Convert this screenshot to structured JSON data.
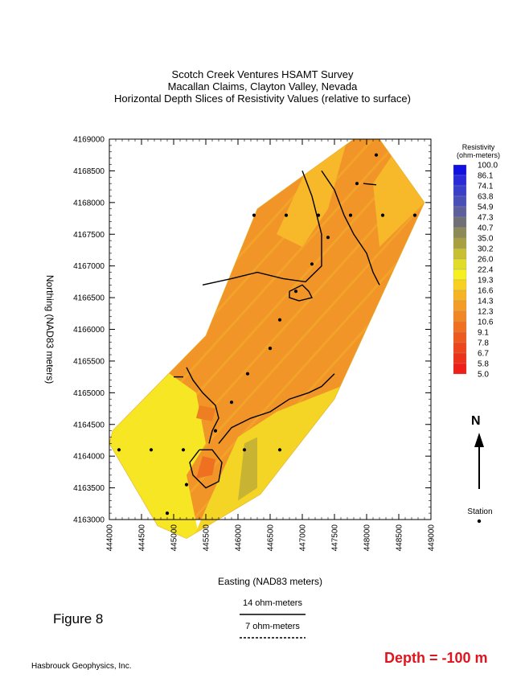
{
  "titles": {
    "line1": "Scotch Creek Ventures HSAMT Survey",
    "line2": "Macallan Claims, Clayton Valley, Nevada",
    "line3": "Horizontal Depth Slices of Resistivity Values (relative to surface)"
  },
  "colors": {
    "background": "#ffffff",
    "depth_text": "#e0141e",
    "contour_line": "#000000"
  },
  "chart_data": {
    "type": "heatmap",
    "xlabel": "Easting (NAD83 meters)",
    "ylabel": "Northing (NAD83 meters)",
    "xlim": [
      444000,
      449000
    ],
    "ylim": [
      4163000,
      4169000
    ],
    "x_ticks": [
      "444000",
      "444500",
      "445000",
      "445500",
      "446000",
      "446500",
      "447000",
      "447500",
      "448000",
      "448500",
      "449000"
    ],
    "y_ticks": [
      "4163000",
      "4163500",
      "4164000",
      "4164500",
      "4165000",
      "4165500",
      "4166000",
      "4166500",
      "4167000",
      "4167500",
      "4168000",
      "4168500",
      "4169000"
    ],
    "colorbar": {
      "title_line1": "Resistivity",
      "title_line2": "(ohm-meters)",
      "levels": [
        "100.0",
        "86.1",
        "74.1",
        "63.8",
        "54.9",
        "47.3",
        "40.7",
        "35.0",
        "30.2",
        "26.0",
        "22.4",
        "19.3",
        "16.6",
        "14.3",
        "12.3",
        "10.6",
        "9.1",
        "7.8",
        "6.7",
        "5.8",
        "5.0"
      ],
      "colors": [
        "#1010e0",
        "#2a2ad8",
        "#3a3ec8",
        "#4a4fb8",
        "#5c5f9c",
        "#707074",
        "#8c8a56",
        "#a8a040",
        "#c8c030",
        "#e0dc28",
        "#f6f020",
        "#f8d020",
        "#f6b424",
        "#f49c24",
        "#f28624",
        "#f07020",
        "#ee5a1e",
        "#ee461c",
        "#ee321a",
        "#ee1e18",
        "#ee1010"
      ]
    },
    "survey_boundary": [
      [
        444050,
        4164400
      ],
      [
        445500,
        4165900
      ],
      [
        446300,
        4167900
      ],
      [
        447800,
        4169000
      ],
      [
        448200,
        4169000
      ],
      [
        448900,
        4168000
      ],
      [
        447500,
        4164900
      ],
      [
        446350,
        4163400
      ],
      [
        445200,
        4162700
      ],
      [
        444750,
        4162900
      ],
      [
        444000,
        4164200
      ]
    ],
    "stations": [
      [
        444150,
        4164100
      ],
      [
        444650,
        4164100
      ],
      [
        445150,
        4164100
      ],
      [
        445200,
        4163550
      ],
      [
        444900,
        4163100
      ],
      [
        445650,
        4164400
      ],
      [
        445900,
        4164850
      ],
      [
        446100,
        4164100
      ],
      [
        446650,
        4164100
      ],
      [
        446150,
        4165300
      ],
      [
        446500,
        4165700
      ],
      [
        446650,
        4166150
      ],
      [
        446900,
        4166600
      ],
      [
        447150,
        4167030
      ],
      [
        447400,
        4167450
      ],
      [
        446250,
        4167800
      ],
      [
        446750,
        4167800
      ],
      [
        447250,
        4167800
      ],
      [
        447750,
        4167800
      ],
      [
        448250,
        4167800
      ],
      [
        448750,
        4167800
      ],
      [
        447850,
        4168300
      ],
      [
        448150,
        4168750
      ]
    ],
    "contours_14": [
      [
        [
          445450,
          4166700
        ],
        [
          445900,
          4166800
        ],
        [
          446300,
          4166900
        ],
        [
          446700,
          4166800
        ],
        [
          447050,
          4166750
        ],
        [
          447300,
          4167000
        ],
        [
          447300,
          4167500
        ],
        [
          447150,
          4168100
        ],
        [
          447000,
          4168500
        ]
      ],
      [
        [
          447300,
          4168500
        ],
        [
          447500,
          4168200
        ],
        [
          447650,
          4167800
        ],
        [
          447800,
          4167500
        ],
        [
          448000,
          4167200
        ],
        [
          448100,
          4166900
        ],
        [
          448200,
          4166700
        ]
      ],
      [
        [
          445200,
          4165400
        ],
        [
          445300,
          4165200
        ],
        [
          445450,
          4165000
        ],
        [
          445650,
          4164800
        ],
        [
          445700,
          4164600
        ],
        [
          445600,
          4164400
        ],
        [
          445550,
          4164200
        ]
      ],
      [
        [
          445700,
          4164200
        ],
        [
          445900,
          4164450
        ],
        [
          446200,
          4164600
        ],
        [
          446500,
          4164700
        ],
        [
          446800,
          4164900
        ],
        [
          447100,
          4165000
        ],
        [
          447300,
          4165100
        ],
        [
          447500,
          4165300
        ]
      ],
      [
        [
          446800,
          4166600
        ],
        [
          447000,
          4166700
        ],
        [
          447100,
          4166600
        ],
        [
          447150,
          4166500
        ],
        [
          446950,
          4166450
        ],
        [
          446800,
          4166500
        ],
        [
          446800,
          4166600
        ]
      ],
      [
        [
          445400,
          4164100
        ],
        [
          445600,
          4164100
        ],
        [
          445750,
          4163900
        ],
        [
          445700,
          4163600
        ],
        [
          445500,
          4163500
        ],
        [
          445300,
          4163700
        ],
        [
          445250,
          4163900
        ],
        [
          445400,
          4164100
        ]
      ],
      [
        [
          447950,
          4168300
        ],
        [
          448150,
          4168280
        ]
      ],
      [
        [
          445000,
          4165250
        ],
        [
          445150,
          4165250
        ]
      ]
    ],
    "annotations": {
      "north": "N",
      "station_legend": "Station"
    }
  },
  "legend": {
    "solid_label": "14 ohm-meters",
    "dashed_label": "7 ohm-meters"
  },
  "figure_label": "Figure 8",
  "credit": "Hasbrouck Geophysics, Inc.",
  "depth_label": "Depth = -100 m"
}
